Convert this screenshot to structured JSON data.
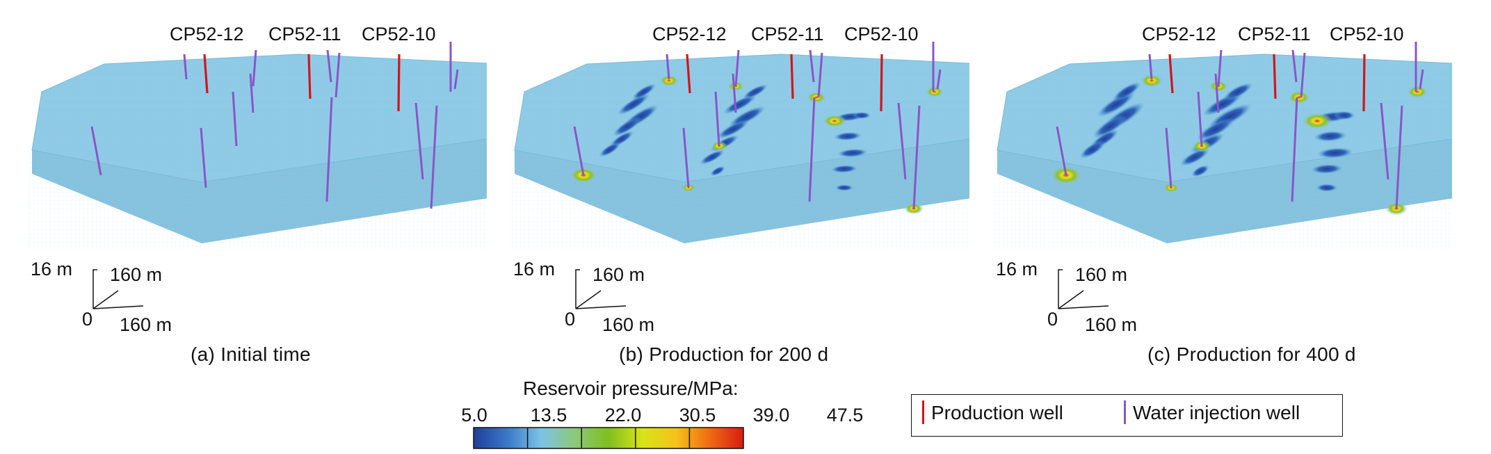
{
  "panels": [
    {
      "caption": "(a) Initial time",
      "well_labels": [
        "CP52-12",
        "CP52-11",
        "CP52-10"
      ],
      "axis": {
        "vertical": "16 m",
        "depth": "160 m",
        "origin": "0",
        "horizontal": "160 m"
      },
      "state": "initial"
    },
    {
      "caption": "(b) Production for 200 d",
      "well_labels": [
        "CP52-12",
        "CP52-11",
        "CP52-10"
      ],
      "axis": {
        "vertical": "16 m",
        "depth": "160 m",
        "origin": "0",
        "horizontal": "160 m"
      },
      "state": "200d"
    },
    {
      "caption": "(c) Production for 400 d",
      "well_labels": [
        "CP52-12",
        "CP52-11",
        "CP52-10"
      ],
      "axis": {
        "vertical": "16 m",
        "depth": "160 m",
        "origin": "0",
        "horizontal": "160 m"
      },
      "state": "400d"
    }
  ],
  "colorbar": {
    "title": "Reservoir pressure/MPa:",
    "ticks": [
      "5.0",
      "13.5",
      "22.0",
      "30.5",
      "39.0",
      "47.5"
    ],
    "colors": [
      "#1f3f9a",
      "#3a78c8",
      "#7cc3e6",
      "#8cc97a",
      "#7fbf1e",
      "#d7e41a",
      "#f6c21a",
      "#ef6b12",
      "#d71c12"
    ]
  },
  "legend": {
    "production_label": "Production well",
    "injection_label": "Water injection well",
    "production_color": "#d4141a",
    "injection_color": "#8a55c8"
  },
  "colors": {
    "reservoir": "#8fcbe6",
    "reservoir_side": "#86c3df",
    "low_pressure": "#1f3f9a",
    "high_pressure": "#cfe024"
  }
}
